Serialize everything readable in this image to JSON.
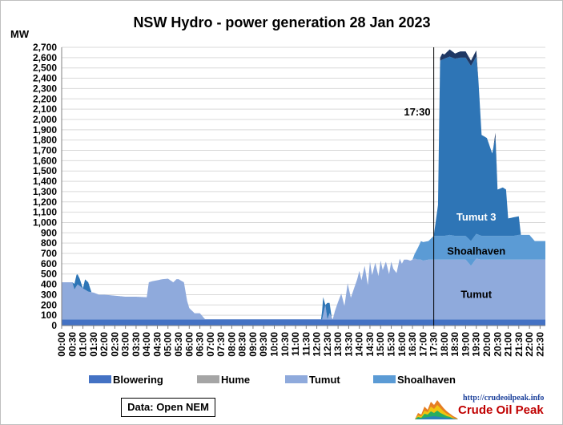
{
  "chart_data": {
    "type": "area",
    "title": "NSW Hydro  - power generation 28 Jan 2023",
    "ylabel": "MW",
    "ylim": [
      0,
      2700
    ],
    "ytick_step": 100,
    "y_tick_labels": [
      "0",
      "100",
      "200",
      "300",
      "400",
      "500",
      "600",
      "700",
      "800",
      "900",
      "1,000",
      "1,100",
      "1,200",
      "1,300",
      "1,400",
      "1,500",
      "1,600",
      "1,700",
      "1,800",
      "1,900",
      "2,000",
      "2,100",
      "2,200",
      "2,300",
      "2,400",
      "2,500",
      "2,600",
      "2,700"
    ],
    "x_tick_labels": [
      "00:00",
      "00:30",
      "01:00",
      "01:30",
      "02:00",
      "02:30",
      "03:00",
      "03:30",
      "04:00",
      "04:30",
      "05:00",
      "05:30",
      "06:00",
      "06:30",
      "07:00",
      "07:30",
      "08:00",
      "08:30",
      "09:00",
      "09:30",
      "10:00",
      "10:30",
      "11:00",
      "11:30",
      "12:00",
      "12:30",
      "13:00",
      "13:30",
      "14:00",
      "14:30",
      "15:00",
      "15:30",
      "16:00",
      "16:30",
      "17:00",
      "17:30",
      "18:00",
      "18:30",
      "19:00",
      "19:30",
      "20:00",
      "20:30",
      "21:00",
      "21:30",
      "22:00",
      "22:30"
    ],
    "x_range_hours": [
      0,
      22.75
    ],
    "stacked": true,
    "series": [
      {
        "name": "Blowering",
        "color": "#4472c4",
        "x_hours": [
          0,
          22.75
        ],
        "values": [
          60,
          60
        ]
      },
      {
        "name": "Hume",
        "color": "#a5a5a5",
        "x_hours": [
          0,
          22.75
        ],
        "values": [
          0,
          0
        ]
      },
      {
        "name": "Tumut",
        "color": "#8faadc",
        "x_hours": [
          0,
          0.5,
          0.6,
          0.75,
          1,
          1.25,
          1.5,
          1.75,
          2,
          2.5,
          3,
          3.5,
          4,
          4.1,
          4.25,
          4.5,
          4.75,
          5,
          5.25,
          5.4,
          5.5,
          5.75,
          5.9,
          6,
          6.25,
          6.5,
          6.75,
          7,
          8,
          9,
          10,
          11,
          12,
          12.25,
          12.4,
          12.5,
          12.6,
          12.75,
          12.85,
          13,
          13.15,
          13.3,
          13.45,
          13.6,
          13.75,
          13.9,
          14,
          14.1,
          14.25,
          14.4,
          14.5,
          14.6,
          14.75,
          14.9,
          15,
          15.1,
          15.25,
          15.4,
          15.5,
          15.6,
          15.75,
          15.9,
          16,
          16.1,
          16.25,
          16.4,
          16.5,
          16.6,
          16.75,
          16.9,
          17,
          17.25,
          17.5,
          17.75,
          18,
          18.25,
          18.5,
          18.75,
          19,
          19.25,
          19.5,
          19.75,
          20,
          20.25,
          20.5,
          20.75,
          21,
          21.25,
          21.5,
          21.75,
          22,
          22.25,
          22.5,
          22.75
        ],
        "values": [
          360,
          360,
          290,
          340,
          300,
          270,
          260,
          240,
          240,
          230,
          220,
          220,
          215,
          360,
          370,
          380,
          390,
          395,
          360,
          390,
          390,
          360,
          180,
          110,
          60,
          60,
          0,
          0,
          0,
          0,
          0,
          0,
          0,
          0,
          140,
          0,
          60,
          0,
          80,
          170,
          250,
          130,
          350,
          210,
          300,
          390,
          470,
          380,
          520,
          330,
          560,
          430,
          550,
          420,
          570,
          480,
          560,
          440,
          560,
          490,
          450,
          590,
          540,
          580,
          580,
          570,
          580,
          590,
          580,
          580,
          570,
          580,
          580,
          580,
          580,
          580,
          580,
          580,
          580,
          520,
          590,
          580,
          580,
          580,
          580,
          580,
          580,
          580,
          580,
          580,
          580,
          580,
          580,
          580
        ]
      },
      {
        "name": "Shoalhaven",
        "color": "#5b9bd5",
        "x_hours": [
          0,
          0.5,
          1,
          5,
          6,
          12,
          13,
          16.5,
          16.9,
          17,
          17.25,
          17.5,
          17.75,
          18,
          18.25,
          18.5,
          18.75,
          19,
          19.25,
          19.5,
          19.75,
          20,
          20.25,
          20.5,
          20.75,
          21,
          21.25,
          21.5,
          21.75,
          22,
          22.25,
          22.5,
          22.75
        ],
        "values": [
          0,
          0,
          0,
          0,
          0,
          0,
          0,
          0,
          180,
          180,
          180,
          230,
          230,
          230,
          240,
          230,
          230,
          230,
          240,
          240,
          230,
          230,
          230,
          230,
          230,
          230,
          230,
          240,
          240,
          240,
          180,
          180,
          180
        ]
      },
      {
        "name": "Tumut 3",
        "color": "#2e75b6",
        "legend": false,
        "x_hours": [
          0,
          0.5,
          0.7,
          0.85,
          1,
          1.1,
          1.25,
          1.4,
          1.6,
          12.2,
          12.3,
          12.4,
          12.5,
          12.6,
          12.7,
          17.5,
          17.7,
          17.8,
          18,
          18.25,
          18.5,
          18.75,
          19,
          19.25,
          19.5,
          19.6,
          19.75,
          20,
          20.25,
          20.4,
          20.5,
          20.75,
          20.9,
          21,
          21.25,
          21.5,
          21.6,
          21.75,
          22.75
        ],
        "values": [
          0,
          0,
          110,
          70,
          0,
          100,
          90,
          0,
          0,
          0,
          170,
          0,
          160,
          100,
          0,
          0,
          300,
          1700,
          1720,
          1730,
          1720,
          1730,
          1730,
          1700,
          1720,
          1500,
          980,
          950,
          800,
          960,
          450,
          470,
          450,
          170,
          180,
          180,
          0,
          0,
          0
        ]
      },
      {
        "name": "Tumut 3 peak",
        "color": "#1f3864",
        "legend": false,
        "x_hours": [
          17.7,
          17.9,
          18,
          18.25,
          18.5,
          18.75,
          19,
          19.25,
          19.5,
          19.6,
          20.3,
          20.4,
          20.5
        ],
        "values": [
          0,
          60,
          40,
          70,
          50,
          60,
          60,
          50,
          60,
          0,
          0,
          40,
          0
        ]
      }
    ],
    "legend": [
      "Blowering",
      "Hume",
      "Tumut",
      "Shoalhaven"
    ],
    "legend_position": "bottom",
    "annotations": [
      {
        "text": "17:30",
        "x_hours": 17.5,
        "kind": "vertical-line"
      },
      {
        "text": "Tumut 3",
        "x_hours": 19.5,
        "y": 1050,
        "color": "#ffffff"
      },
      {
        "text": "Shoalhaven",
        "x_hours": 19.5,
        "y": 720,
        "color": "#000000"
      },
      {
        "text": "Tumut",
        "x_hours": 19.5,
        "y": 300,
        "color": "#000000"
      }
    ]
  },
  "footer": {
    "source": "Data: Open NEM",
    "logo_url": "http://crudeoilpeak.info",
    "logo_name": "Crude Oil Peak"
  }
}
